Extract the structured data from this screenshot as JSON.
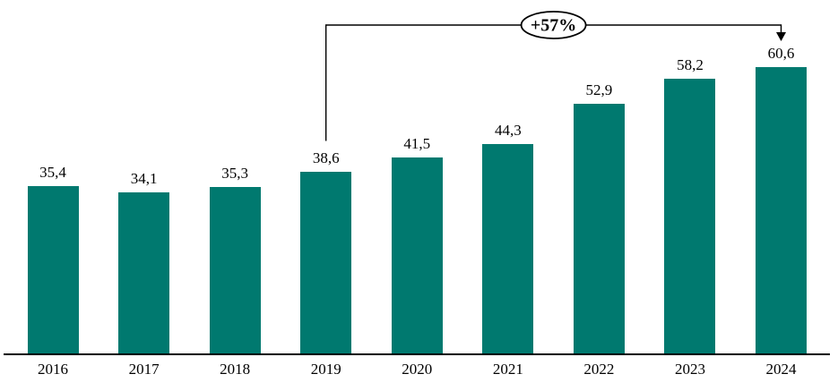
{
  "chart_data": {
    "type": "bar",
    "categories": [
      "2016",
      "2017",
      "2018",
      "2019",
      "2020",
      "2021",
      "2022",
      "2023",
      "2024"
    ],
    "values": [
      35.4,
      34.1,
      35.3,
      38.6,
      41.5,
      44.3,
      52.9,
      58.2,
      60.6
    ],
    "value_labels": [
      "35,4",
      "34,1",
      "35,3",
      "38,6",
      "41,5",
      "44,3",
      "52,9",
      "58,2",
      "60,6"
    ],
    "title": "",
    "xlabel": "",
    "ylabel": "",
    "ylim": [
      0,
      62
    ],
    "grid": false,
    "legend": false,
    "bar_color": "#00796F",
    "axis_color": "#000000",
    "label_color": "#000000",
    "annotation": {
      "label": "+57%",
      "from_category": "2019",
      "to_category": "2024"
    }
  }
}
